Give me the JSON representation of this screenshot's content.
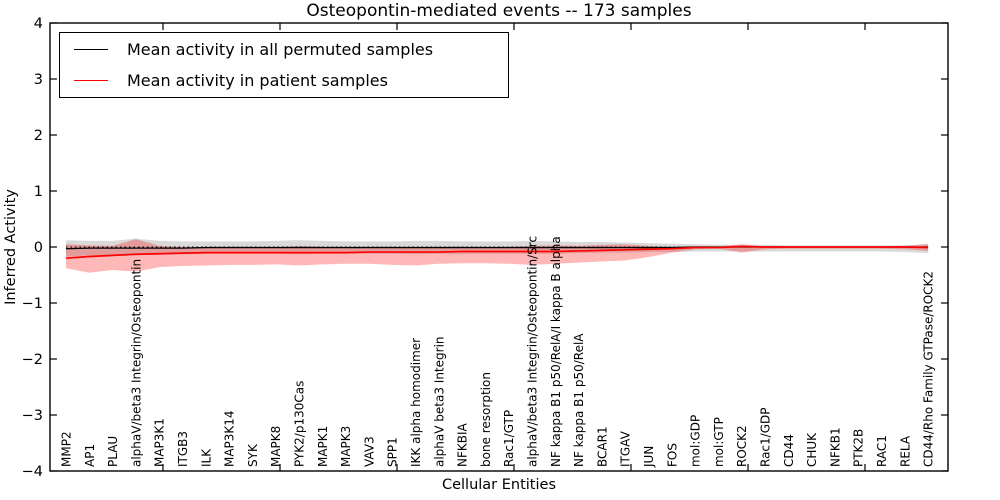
{
  "chart_data": {
    "type": "line",
    "title": "Osteopontin-mediated events -- 173 samples",
    "xlabel": "Cellular Entities",
    "ylabel": "Inferred Activity",
    "ylim": [
      -4,
      4
    ],
    "yticks": [
      -4,
      -3,
      -2,
      -1,
      0,
      1,
      2,
      3,
      4
    ],
    "zero_line_style": "dotted",
    "legend_position": "upper-left",
    "grid": false,
    "legend": [
      {
        "label": "Mean activity in all permuted samples",
        "color": "#000000"
      },
      {
        "label": "Mean activity in patient samples",
        "color": "#ff0000"
      }
    ],
    "categories": [
      "MMP2",
      "AP1",
      "PLAU",
      "alphaV/beta3 Integrin/Osteopontin",
      "MAP3K1",
      "ITGB3",
      "ILK",
      "MAP3K14",
      "SYK",
      "MAPK8",
      "PYK2/p130Cas",
      "MAPK1",
      "MAPK3",
      "VAV3",
      "SPP1",
      "IKK alpha homodimer",
      "alphaV beta3 Integrin",
      "NFKBIA",
      "bone resorption",
      "Rac1/GTP",
      "alphaV/beta3 Integrin/Osteopontin/Src",
      "NF kappa B1 p50/RelA/I kappa B alpha",
      "NF kappa B1 p50/RelA",
      "BCAR1",
      "ITGAV",
      "JUN",
      "FOS",
      "mol:GDP",
      "mol:GTP",
      "ROCK2",
      "Rac1/GDP",
      "CD44",
      "CHUK",
      "NFKB1",
      "PTK2B",
      "RAC1",
      "RELA",
      "CD44/Rho Family GTPase/ROCK2"
    ],
    "series": [
      {
        "name": "permuted_mean",
        "color": "#000000",
        "width": 1.3,
        "values": [
          -0.03,
          -0.02,
          -0.02,
          -0.02,
          -0.02,
          -0.02,
          -0.01,
          -0.01,
          -0.01,
          -0.01,
          -0.01,
          -0.01,
          -0.01,
          -0.01,
          -0.01,
          -0.01,
          -0.01,
          -0.01,
          -0.01,
          -0.01,
          -0.01,
          -0.01,
          -0.01,
          -0.01,
          -0.01,
          -0.01,
          -0.01,
          0,
          0,
          0,
          0,
          0,
          0,
          0,
          0,
          0,
          0,
          0
        ]
      },
      {
        "name": "patient_mean",
        "color": "#ff0000",
        "width": 1.7,
        "values": [
          -0.2,
          -0.17,
          -0.15,
          -0.13,
          -0.12,
          -0.11,
          -0.1,
          -0.1,
          -0.1,
          -0.1,
          -0.1,
          -0.1,
          -0.1,
          -0.09,
          -0.09,
          -0.09,
          -0.09,
          -0.08,
          -0.08,
          -0.08,
          -0.08,
          -0.08,
          -0.07,
          -0.06,
          -0.05,
          -0.04,
          -0.03,
          -0.01,
          -0.01,
          0.01,
          0,
          0,
          0,
          0,
          0,
          0,
          0,
          -0.01
        ]
      }
    ],
    "bands": [
      {
        "name": "permuted_band",
        "color": "#000000",
        "opacity": 0.15,
        "upper": [
          0.12,
          0.11,
          0.11,
          0.15,
          0.11,
          0.1,
          0.1,
          0.1,
          0.1,
          0.11,
          0.12,
          0.11,
          0.1,
          0.1,
          0.1,
          0.11,
          0.11,
          0.1,
          0.1,
          0.1,
          0.11,
          0.1,
          0.09,
          0.09,
          0.08,
          0.07,
          0.06,
          0.05,
          0.04,
          0.04,
          0.04,
          0.03,
          0.03,
          0.03,
          0.03,
          0.03,
          0.03,
          0.04
        ],
        "lower": [
          -0.17,
          -0.15,
          -0.14,
          -0.15,
          -0.13,
          -0.13,
          -0.12,
          -0.12,
          -0.12,
          -0.12,
          -0.13,
          -0.12,
          -0.12,
          -0.12,
          -0.12,
          -0.13,
          -0.12,
          -0.12,
          -0.12,
          -0.12,
          -0.12,
          -0.12,
          -0.11,
          -0.1,
          -0.1,
          -0.09,
          -0.09,
          -0.08,
          -0.08,
          -0.08,
          -0.08,
          -0.08,
          -0.08,
          -0.08,
          -0.08,
          -0.08,
          -0.09,
          -0.11
        ]
      },
      {
        "name": "patient_band",
        "color": "#ff0000",
        "opacity": 0.28,
        "upper": [
          0.05,
          0.03,
          0.02,
          0.14,
          0.02,
          0,
          -0.01,
          -0.02,
          -0.02,
          -0.01,
          0.02,
          0,
          -0.01,
          -0.02,
          -0.02,
          0,
          -0.01,
          -0.02,
          -0.01,
          0,
          0.02,
          0.03,
          0.02,
          0.04,
          0.05,
          0.02,
          -0.01,
          0,
          0.01,
          0.05,
          0.01,
          0.01,
          0.01,
          0.01,
          0.01,
          0.01,
          0.02,
          0.06
        ],
        "lower": [
          -0.38,
          -0.46,
          -0.41,
          -0.44,
          -0.36,
          -0.34,
          -0.33,
          -0.32,
          -0.32,
          -0.31,
          -0.33,
          -0.31,
          -0.3,
          -0.3,
          -0.32,
          -0.33,
          -0.3,
          -0.29,
          -0.29,
          -0.3,
          -0.32,
          -0.3,
          -0.28,
          -0.26,
          -0.24,
          -0.18,
          -0.1,
          -0.04,
          -0.03,
          -0.1,
          -0.04,
          -0.03,
          -0.03,
          -0.03,
          -0.03,
          -0.03,
          -0.04,
          -0.07
        ]
      }
    ]
  }
}
